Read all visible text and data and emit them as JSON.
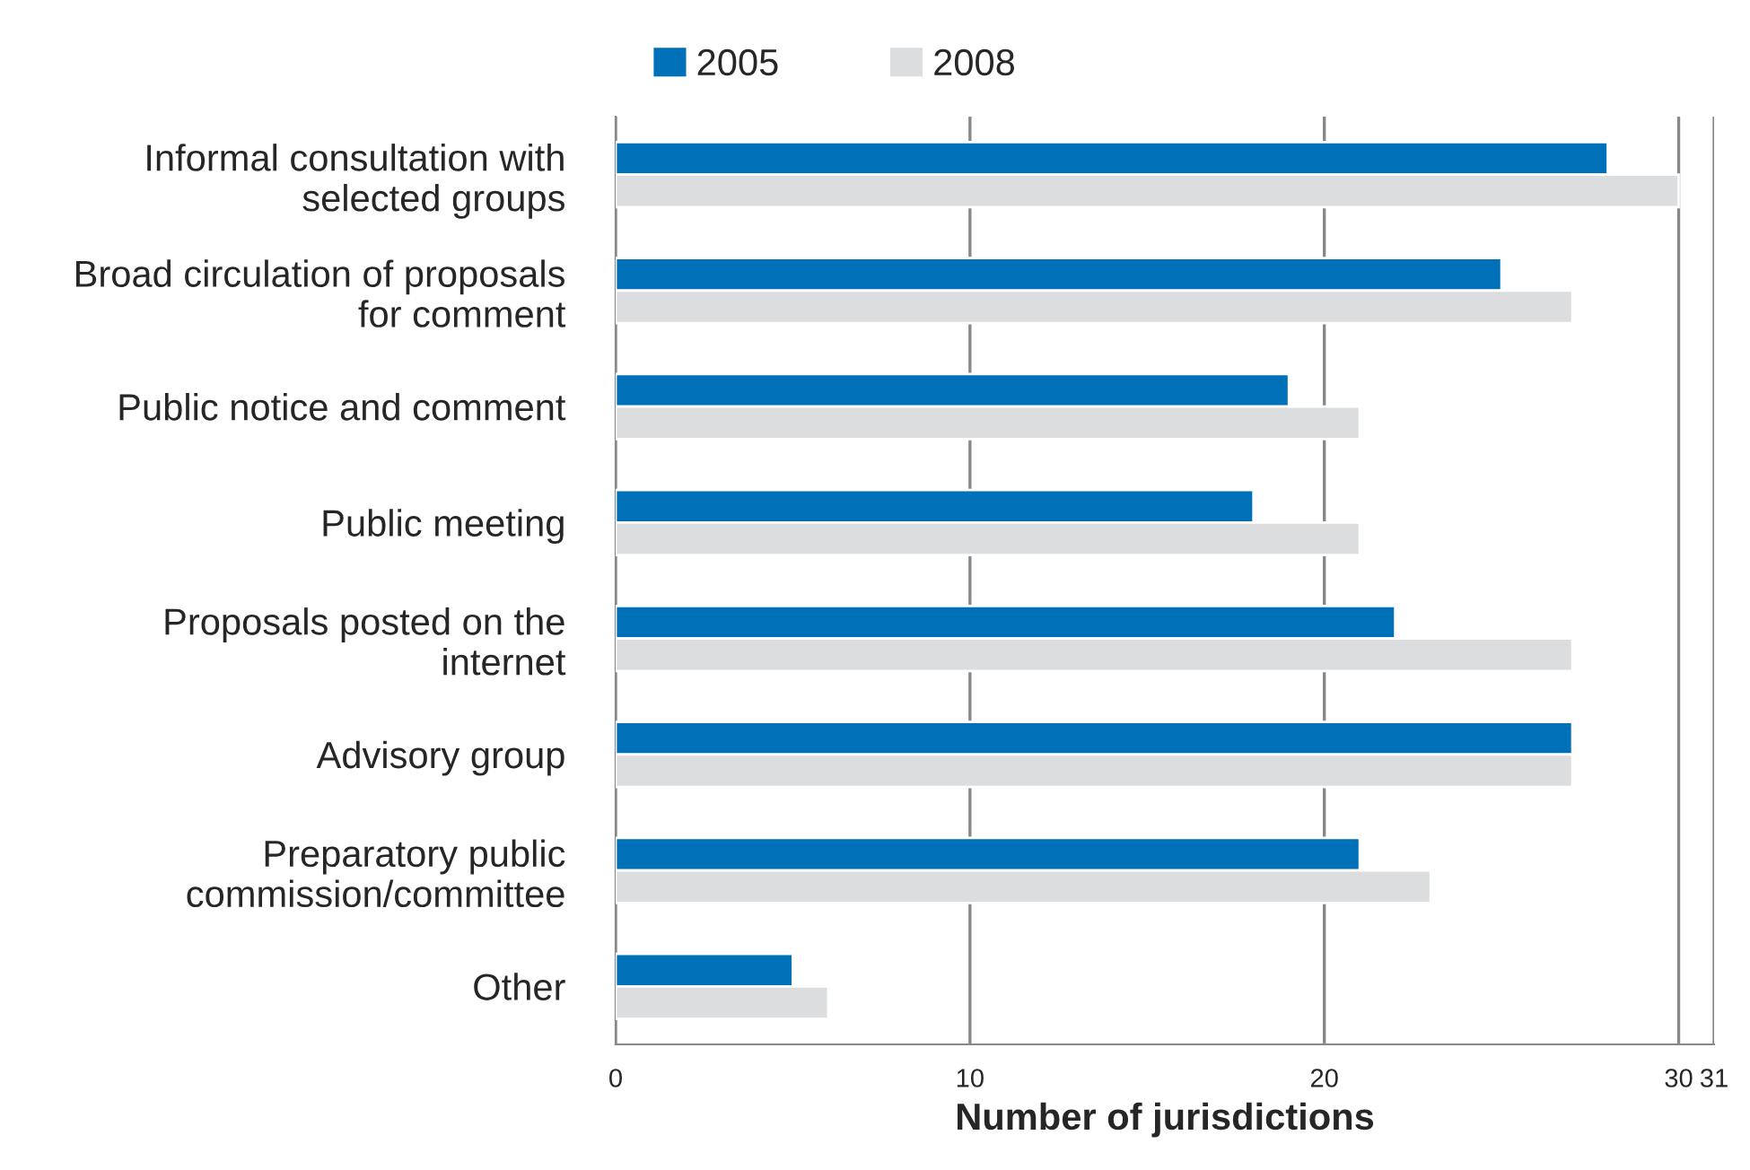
{
  "chart_data": {
    "type": "bar",
    "orientation": "horizontal",
    "xlabel": "Number of jurisdictions",
    "categories": [
      "Informal consultation with\nselected groups",
      "Broad circulation of proposals\nfor comment",
      "Public notice and comment",
      "Public meeting",
      "Proposals posted on the\ninternet",
      "Advisory group",
      "Preparatory public\ncommission/committee",
      "Other"
    ],
    "series": [
      {
        "name": "2005",
        "color": "#0070b8",
        "values": [
          28,
          25,
          19,
          18,
          22,
          27,
          21,
          5
        ]
      },
      {
        "name": "2008",
        "color": "#dcdddf",
        "values": [
          30,
          27,
          21,
          21,
          27,
          27,
          23,
          6
        ]
      }
    ],
    "xlim": [
      0,
      31
    ],
    "xticks": [
      0,
      10,
      20,
      30,
      31
    ],
    "grid": "x",
    "legend": "top"
  }
}
